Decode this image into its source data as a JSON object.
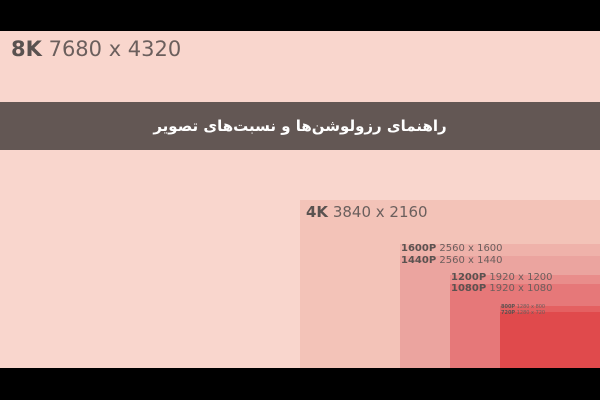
{
  "title": "راهنمای رزولوشن‌ها و نسبت‌های تصویر",
  "colors": {
    "background": "#f9d6cd",
    "band": "#635754"
  },
  "resolutions": [
    {
      "name": "8K",
      "dims": "7680 x 4320"
    },
    {
      "name": "4K",
      "dims": "3840 x 2160",
      "color": "#f3c3b8"
    },
    {
      "name": "1600P",
      "dims": "2560 x 1600",
      "color": "#efb2aa"
    },
    {
      "name": "1440P",
      "dims": "2560 x 1440",
      "color": "#eba49f"
    },
    {
      "name": "1200P",
      "dims": "1920 x 1200",
      "color": "#e98d8b"
    },
    {
      "name": "1080P",
      "dims": "1920 x 1080",
      "color": "#e67879"
    },
    {
      "name": "800P",
      "dims": "1280 x 800",
      "color": "#e46061"
    },
    {
      "name": "720P",
      "dims": "1280 x 720",
      "color": "#e04a4c"
    }
  ]
}
